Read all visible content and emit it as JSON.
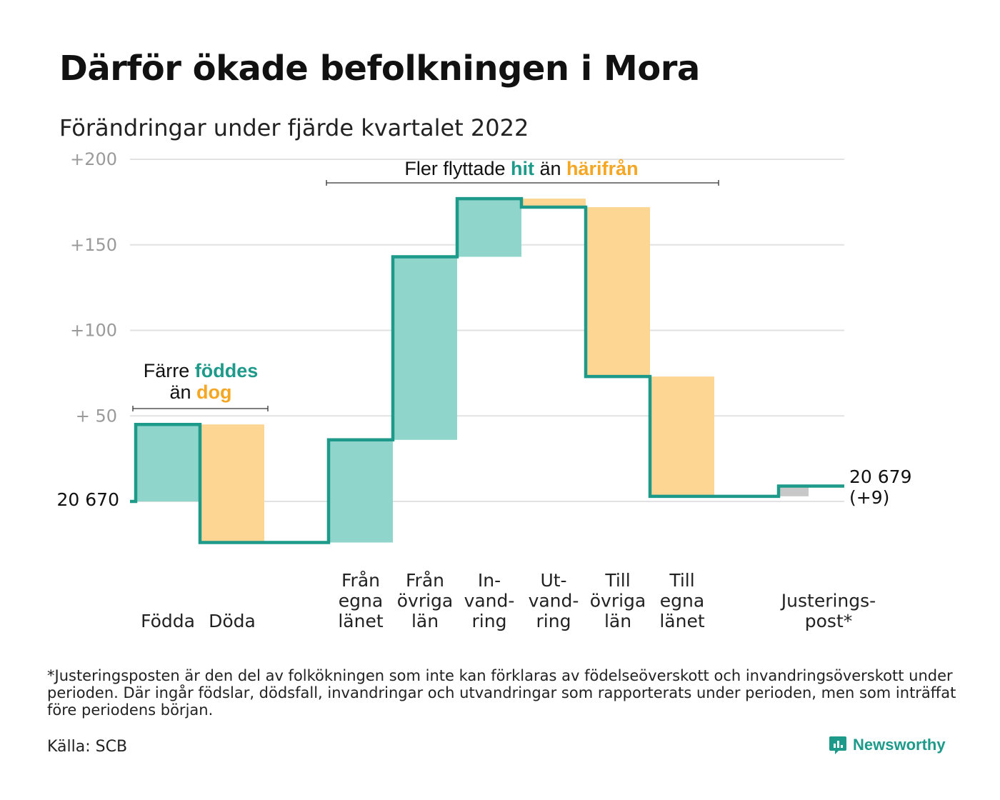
{
  "title": "Därför ökade befolkningen i Mora",
  "subtitle": "Förändringar under fjärde kvartalet 2022",
  "colors": {
    "teal": "#1d9a8a",
    "teal_fill": "#8fd5cb",
    "orange": "#f5a623",
    "orange_fill": "#fcd692",
    "grey_fill": "#c8c8c8",
    "grid": "#e2e2e2",
    "tick": "#9a9a9a"
  },
  "chart_data": {
    "type": "waterfall",
    "start_label": "20 670",
    "end_label_line1": "20 679",
    "end_label_line2": "(+9)",
    "ylim": [
      -26,
      200
    ],
    "yticks": [
      {
        "value": 200,
        "label": "+200"
      },
      {
        "value": 150,
        "label": "+150"
      },
      {
        "value": 100,
        "label": "+100"
      },
      {
        "value": 50,
        "label": "+ 50"
      }
    ],
    "steps": [
      {
        "label": [
          "Födda"
        ],
        "value": 45,
        "kind": "in"
      },
      {
        "label": [
          "Döda"
        ],
        "value": -69,
        "kind": "out"
      },
      {
        "label": [],
        "value": 0,
        "kind": "gap"
      },
      {
        "label": [
          "Från",
          "egna",
          "länet"
        ],
        "value": 60,
        "kind": "in"
      },
      {
        "label": [
          "Från",
          "övriga",
          "län"
        ],
        "value": 107,
        "kind": "in"
      },
      {
        "label": [
          "In-",
          "vand-",
          "ring"
        ],
        "value": 34,
        "kind": "in"
      },
      {
        "label": [
          "Ut-",
          "vand-",
          "ring"
        ],
        "value": -5,
        "kind": "out"
      },
      {
        "label": [
          "Till",
          "övriga",
          "län"
        ],
        "value": -99,
        "kind": "out"
      },
      {
        "label": [
          "Till",
          "egna",
          "länet"
        ],
        "value": -70,
        "kind": "out"
      },
      {
        "label": [],
        "value": 0,
        "kind": "gap"
      },
      {
        "label": [
          "Justerings-",
          "post*"
        ],
        "value": 6,
        "kind": "adjust"
      }
    ],
    "annotations": {
      "births": {
        "line1": "Färre ",
        "line1_em": "föddes",
        "line2": "än ",
        "line2_em": "dog"
      },
      "migration": {
        "text": "Fler flyttade ",
        "em1": "hit",
        "mid": " än ",
        "em2": "härifrån"
      }
    }
  },
  "footnote": "*Justeringsposten är den del av folkökningen som inte kan förklaras av födelseöverskott och invandringsöverskott under perioden. Där ingår födslar, dödsfall, invandringar och utvandringar som rapporterats under perioden, men som inträffat före periodens början.",
  "source": "Källa: SCB",
  "brand": "Newsworthy"
}
